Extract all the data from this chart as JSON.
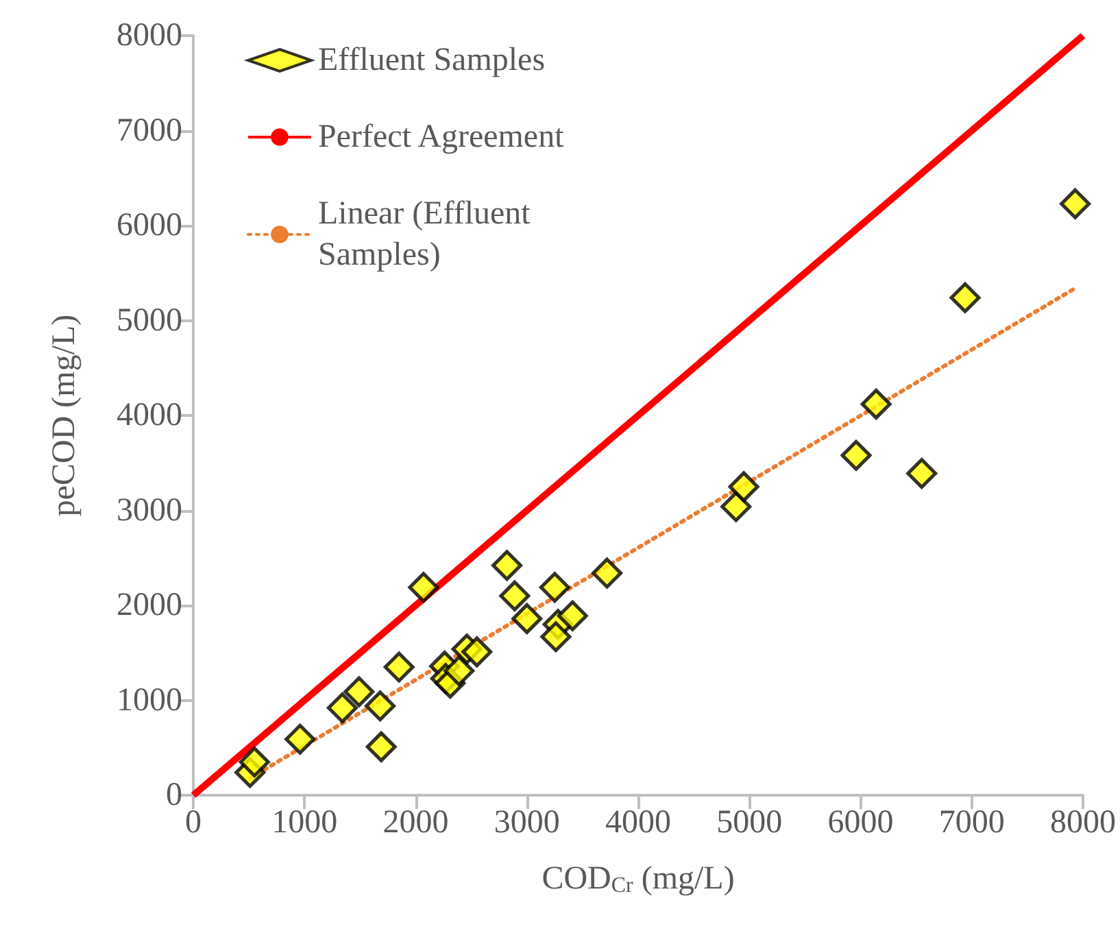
{
  "chart_data": {
    "type": "scatter",
    "xlabel": "COD$_{Cr}$ (mg/L)",
    "ylabel": "peCOD (mg/L)",
    "xlim": [
      0,
      8000
    ],
    "ylim": [
      0,
      8000
    ],
    "xticks": [
      0,
      1000,
      2000,
      3000,
      4000,
      5000,
      6000,
      7000,
      8000
    ],
    "yticks": [
      0,
      1000,
      2000,
      3000,
      4000,
      5000,
      6000,
      7000,
      8000
    ],
    "grid": false,
    "legend": "top left",
    "series": [
      {
        "name": "Effluent Samples",
        "marker": "diamond",
        "color": "#ffff00",
        "x": [
          510,
          550,
          960,
          1340,
          1490,
          1690,
          1680,
          1850,
          2070,
          2260,
          2270,
          2310,
          2390,
          2460,
          2550,
          2820,
          2890,
          3000,
          3250,
          3280,
          3260,
          3410,
          3720,
          4880,
          4950,
          5960,
          6140,
          6550,
          6940,
          7930
        ],
        "values": [
          240,
          350,
          590,
          920,
          1090,
          510,
          940,
          1350,
          2190,
          1360,
          1230,
          1180,
          1310,
          1540,
          1510,
          2420,
          2100,
          1860,
          2190,
          1800,
          1670,
          1890,
          2340,
          3040,
          3250,
          3580,
          4120,
          3390,
          5240,
          6230
        ]
      },
      {
        "name": "Perfect Agreement",
        "type": "line",
        "marker": "none",
        "line_style": "solid",
        "color": "#ff0000",
        "x": [
          0,
          8000
        ],
        "values": [
          0,
          8000
        ]
      },
      {
        "name": "Linear (Effluent Samples)",
        "type": "line",
        "marker": "none",
        "line_style": "dotted",
        "color": "#ed7d31",
        "x": [
          510,
          7930
        ],
        "values": [
          180,
          5340
        ]
      }
    ]
  }
}
